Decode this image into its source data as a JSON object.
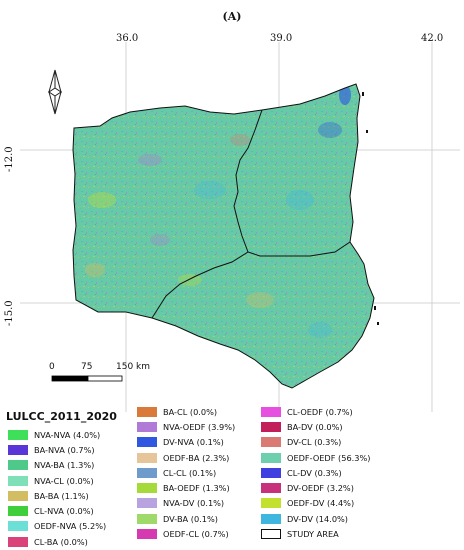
{
  "panel_label": "(A)",
  "lon_labels": [
    "36.0",
    "39.0",
    "42.0"
  ],
  "lat_labels": [
    "-12.0",
    "-15.0"
  ],
  "scale_bar": {
    "labels": [
      "0",
      "75",
      "150 km"
    ]
  },
  "legend": {
    "title": "LULCC_2011_2020",
    "columns": [
      [
        {
          "label": "NVA-NVA (4.0%)",
          "color": "#3ee05a"
        },
        {
          "label": "BA-NVA (0.7%)",
          "color": "#5b36d6"
        },
        {
          "label": "NVA-BA (1.3%)",
          "color": "#4fc98a"
        },
        {
          "label": "NVA-CL (0.0%)",
          "color": "#7fe0b8"
        },
        {
          "label": "BA-BA (1.1%)",
          "color": "#d2bd62"
        },
        {
          "label": "CL-NVA (0.0%)",
          "color": "#3fcf3a"
        },
        {
          "label": "OEDF-NVA (5.2%)",
          "color": "#6ce0d6"
        },
        {
          "label": "CL-BA (0.0%)",
          "color": "#d9437a"
        }
      ],
      [
        {
          "label": "BA-CL (0.0%)",
          "color": "#d9793a"
        },
        {
          "label": "NVA-OEDF (3.9%)",
          "color": "#b07ad6"
        },
        {
          "label": "DV-NVA (0.1%)",
          "color": "#2f57e0"
        },
        {
          "label": "OEDF-BA (2.3%)",
          "color": "#e6c59a"
        },
        {
          "label": "CL-CL (0.1%)",
          "color": "#6f9acc"
        },
        {
          "label": "BA-OEDF (1.3%)",
          "color": "#a6d93a"
        },
        {
          "label": "NVA-DV (0.1%)",
          "color": "#b8a3e0"
        },
        {
          "label": "DV-BA (0.1%)",
          "color": "#9ed96a"
        },
        {
          "label": "OEDF-CL (0.7%)",
          "color": "#d63ab0"
        }
      ],
      [
        {
          "label": "CL-OEDF (0.7%)",
          "color": "#e64fe0"
        },
        {
          "label": "BA-DV (0.0%)",
          "color": "#c21f5a"
        },
        {
          "label": "DV-CL (0.3%)",
          "color": "#d97a74"
        },
        {
          "label": "OEDF-OEDF (56.3%)",
          "color": "#6ecfae"
        },
        {
          "label": "CL-DV (0.3%)",
          "color": "#3f3fe0"
        },
        {
          "label": "DV-OEDF (3.2%)",
          "color": "#c7307a"
        },
        {
          "label": "OEDF-DV (4.4%)",
          "color": "#c4e02f"
        },
        {
          "label": "DV-DV (14.0%)",
          "color": "#3fb6e0"
        },
        {
          "label": "STUDY AREA",
          "color": "#ffffff"
        }
      ]
    ]
  }
}
